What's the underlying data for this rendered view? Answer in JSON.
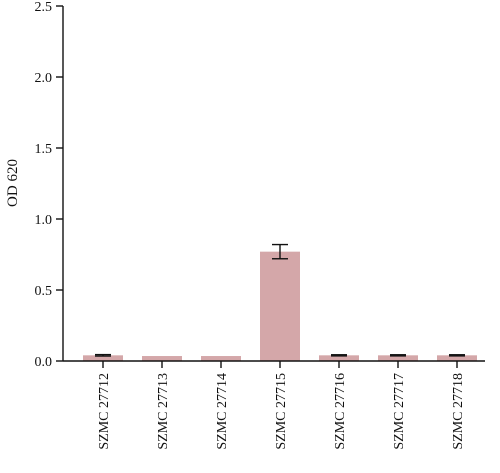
{
  "chart_data": {
    "type": "bar",
    "title": "",
    "xlabel": "",
    "ylabel": "OD 620",
    "ylim": [
      0,
      2.5
    ],
    "yticks": [
      0.0,
      0.5,
      1.0,
      1.5,
      2.0,
      2.5
    ],
    "ytick_labels": [
      "0.0",
      "0.5",
      "1.0",
      "1.5",
      "2.0",
      "2.5"
    ],
    "categories": [
      "SZMC 27712",
      "SZMC 27713",
      "SZMC 27714",
      "SZMC 27715",
      "SZMC 27716",
      "SZMC 27717",
      "SZMC 27718"
    ],
    "values": [
      0.04,
      0.035,
      0.035,
      0.77,
      0.04,
      0.04,
      0.04
    ],
    "errors": [
      0.005,
      null,
      null,
      0.05,
      0.004,
      0.004,
      0.004
    ],
    "bar_color": "#d4a7a9",
    "error_color": "#111111",
    "grid": false,
    "legend": "none"
  }
}
